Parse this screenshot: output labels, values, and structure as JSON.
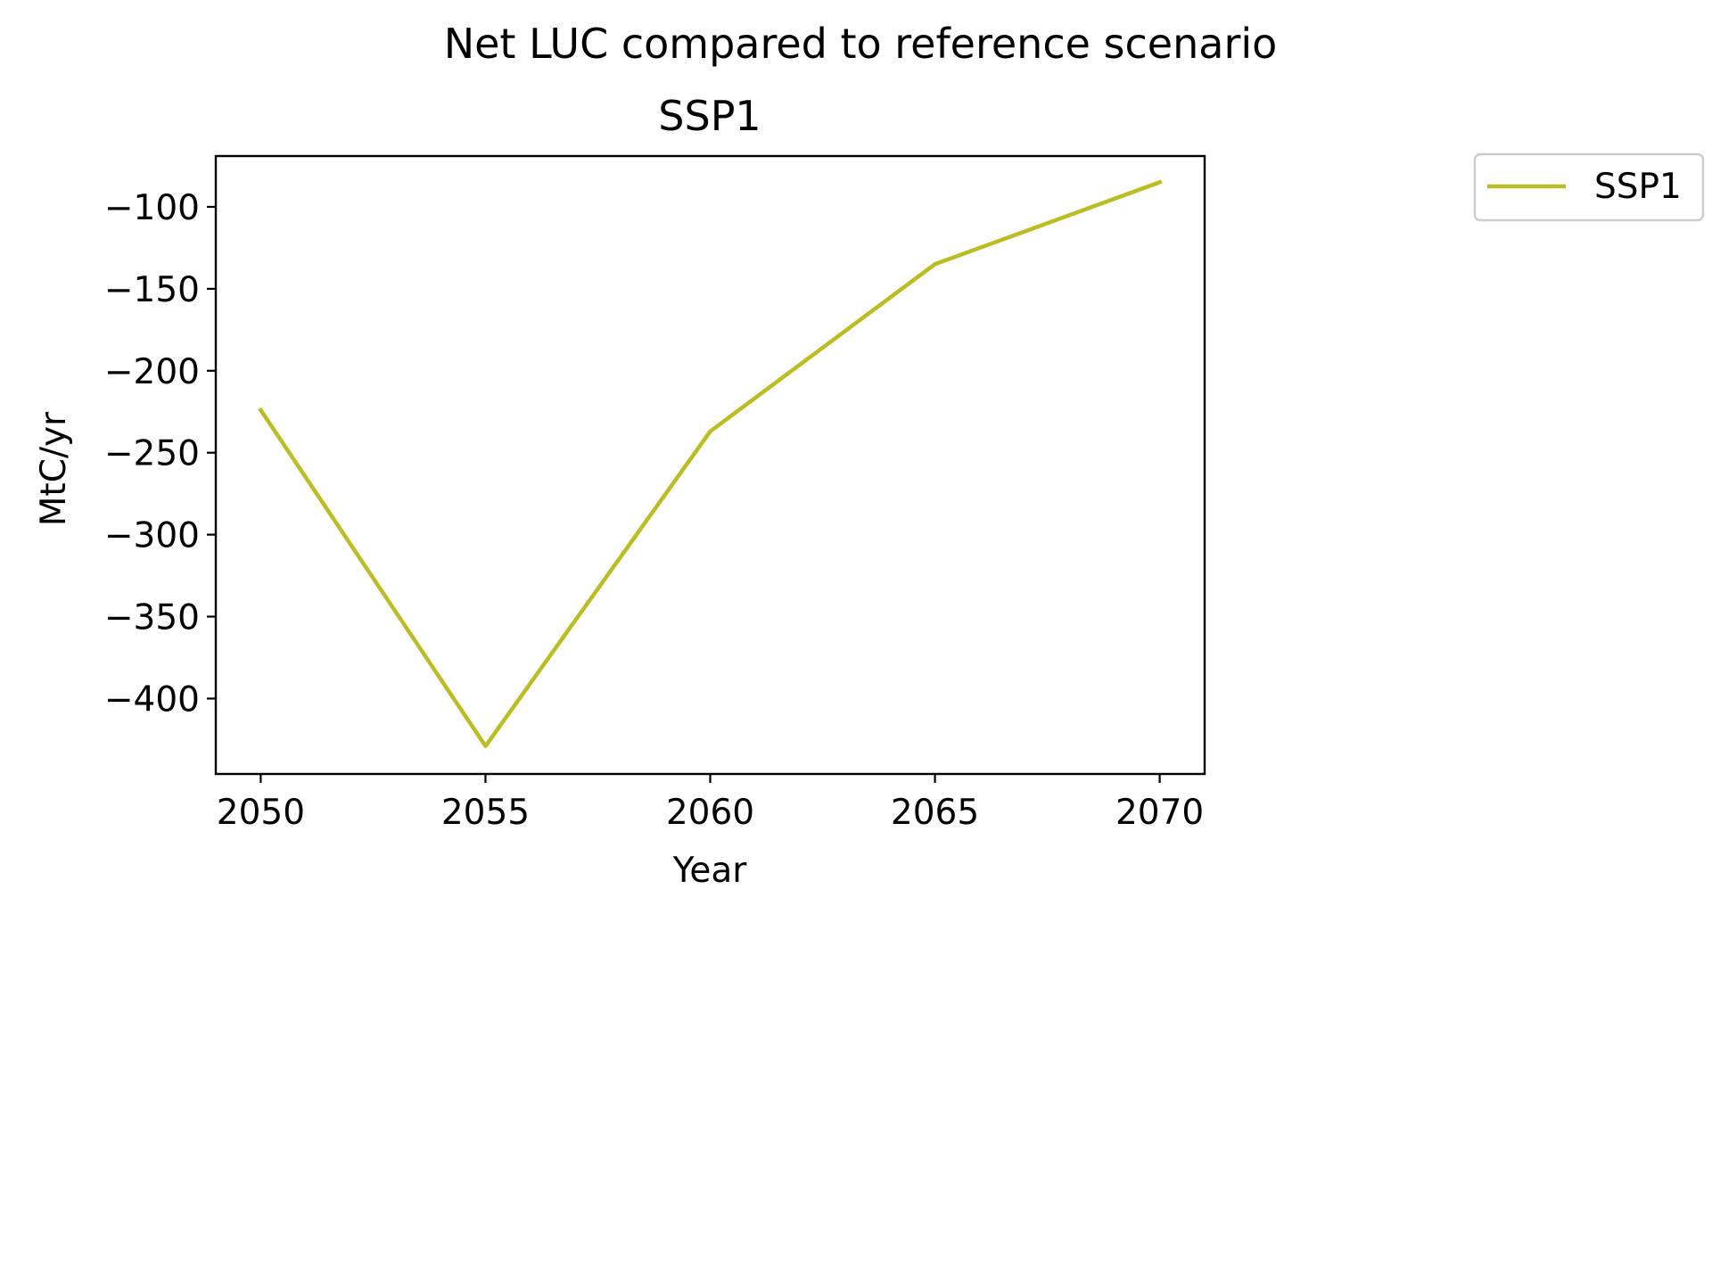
{
  "chart_data": {
    "type": "line",
    "suptitle": "Net LUC compared to reference scenario",
    "title": "SSP1",
    "xlabel": "Year",
    "ylabel": "MtC/yr",
    "x": [
      2050,
      2055,
      2060,
      2065,
      2070
    ],
    "series": [
      {
        "name": "SSP1",
        "values": [
          -224,
          -429,
          -237,
          -135,
          -85
        ],
        "color": "#bcbd22"
      }
    ],
    "xlim": [
      2049,
      2071
    ],
    "ylim": [
      -446,
      -69
    ],
    "xticks": [
      2050,
      2055,
      2060,
      2065,
      2070
    ],
    "xtick_labels": [
      "2050",
      "2055",
      "2060",
      "2065",
      "2070"
    ],
    "yticks": [
      -100,
      -150,
      -200,
      -250,
      -300,
      -350,
      -400
    ],
    "ytick_labels": [
      "−100",
      "−150",
      "−200",
      "−250",
      "−300",
      "−350",
      "−400"
    ],
    "grid": false,
    "legend": {
      "placement": "outside upper right",
      "entries": [
        "SSP1"
      ]
    }
  }
}
